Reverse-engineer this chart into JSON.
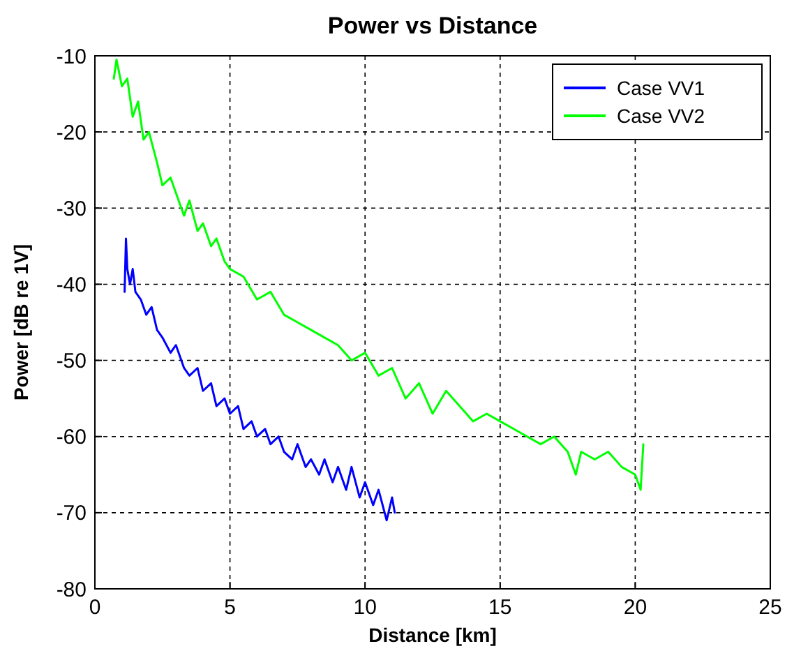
{
  "chart_data": {
    "type": "line",
    "title": "Power vs Distance",
    "xlabel": "Distance [km]",
    "ylabel": "Power [dB re 1V]",
    "xlim": [
      0,
      25
    ],
    "xticks": [
      0,
      5,
      10,
      15,
      20,
      25
    ],
    "ylim": [
      -80,
      -10
    ],
    "yticks": [
      -80,
      -70,
      -60,
      -50,
      -40,
      -30,
      -20,
      -10
    ],
    "grid": true,
    "legend": "top right",
    "line_style": "solid",
    "marker": "none",
    "series": [
      {
        "name": "Case VV1",
        "color": "#0000ff",
        "x": [
          1.1,
          1.15,
          1.2,
          1.3,
          1.4,
          1.5,
          1.7,
          1.9,
          2.1,
          2.3,
          2.5,
          2.8,
          3.0,
          3.3,
          3.5,
          3.8,
          4.0,
          4.3,
          4.5,
          4.8,
          5.0,
          5.3,
          5.5,
          5.8,
          6.0,
          6.3,
          6.5,
          6.8,
          7.0,
          7.3,
          7.5,
          7.8,
          8.0,
          8.3,
          8.5,
          8.8,
          9.0,
          9.3,
          9.5,
          9.8,
          10.0,
          10.3,
          10.5,
          10.8,
          11.0,
          11.1
        ],
        "values": [
          -41,
          -34,
          -38,
          -40,
          -38,
          -41,
          -42,
          -44,
          -43,
          -46,
          -47,
          -49,
          -48,
          -51,
          -52,
          -51,
          -54,
          -53,
          -56,
          -55,
          -57,
          -56,
          -59,
          -58,
          -60,
          -59,
          -61,
          -60,
          -62,
          -63,
          -61,
          -64,
          -63,
          -65,
          -63,
          -66,
          -64,
          -67,
          -64,
          -68,
          -66,
          -69,
          -67,
          -71,
          -68,
          -70
        ]
      },
      {
        "name": "Case VV2",
        "color": "#00ff00",
        "x": [
          0.7,
          0.8,
          1.0,
          1.2,
          1.4,
          1.6,
          1.8,
          2.0,
          2.3,
          2.5,
          2.8,
          3.0,
          3.3,
          3.5,
          3.8,
          4.0,
          4.3,
          4.5,
          4.8,
          5.0,
          5.5,
          6.0,
          6.5,
          7.0,
          7.5,
          8.0,
          8.5,
          9.0,
          9.5,
          10.0,
          10.5,
          11.0,
          11.5,
          12.0,
          12.5,
          13.0,
          13.5,
          14.0,
          14.5,
          15.0,
          15.5,
          16.0,
          16.5,
          17.0,
          17.5,
          17.8,
          18.0,
          18.5,
          19.0,
          19.5,
          20.0,
          20.2,
          20.3
        ],
        "values": [
          -13,
          -10.5,
          -14,
          -13,
          -18,
          -16,
          -21,
          -20,
          -24,
          -27,
          -26,
          -28,
          -31,
          -29,
          -33,
          -32,
          -35,
          -34,
          -37,
          -38,
          -39,
          -42,
          -41,
          -44,
          -45,
          -46,
          -47,
          -48,
          -50,
          -49,
          -52,
          -51,
          -55,
          -53,
          -57,
          -54,
          -56,
          -58,
          -57,
          -58,
          -59,
          -60,
          -61,
          -60,
          -62,
          -65,
          -62,
          -63,
          -62,
          -64,
          -65,
          -67,
          -61
        ]
      }
    ]
  }
}
